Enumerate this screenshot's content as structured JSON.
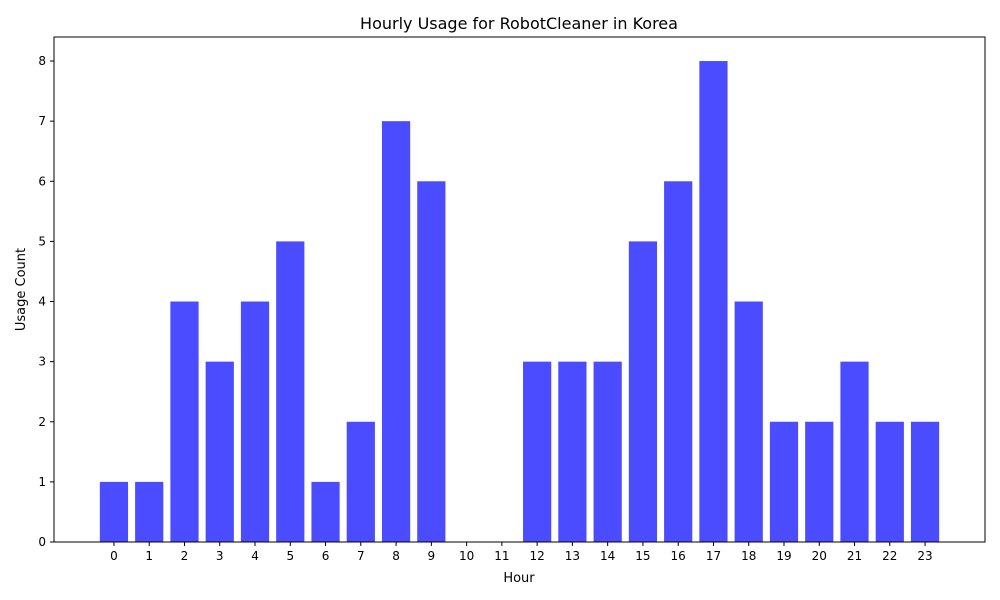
{
  "chart_data": {
    "type": "bar",
    "title": "Hourly Usage for RobotCleaner in Korea",
    "xlabel": "Hour",
    "ylabel": "Usage Count",
    "categories": [
      "0",
      "1",
      "2",
      "3",
      "4",
      "5",
      "6",
      "7",
      "8",
      "9",
      "10",
      "11",
      "12",
      "13",
      "14",
      "15",
      "16",
      "17",
      "18",
      "19",
      "20",
      "21",
      "22",
      "23"
    ],
    "values": [
      1,
      1,
      4,
      3,
      4,
      5,
      1,
      2,
      7,
      6,
      0,
      0,
      3,
      3,
      3,
      5,
      6,
      8,
      4,
      2,
      2,
      3,
      2,
      2
    ],
    "ylim": [
      0,
      8.4
    ],
    "yticks": [
      0,
      1,
      2,
      3,
      4,
      5,
      6,
      7,
      8
    ],
    "grid": false,
    "legend": "none",
    "bar_color": "#4b4bff"
  }
}
